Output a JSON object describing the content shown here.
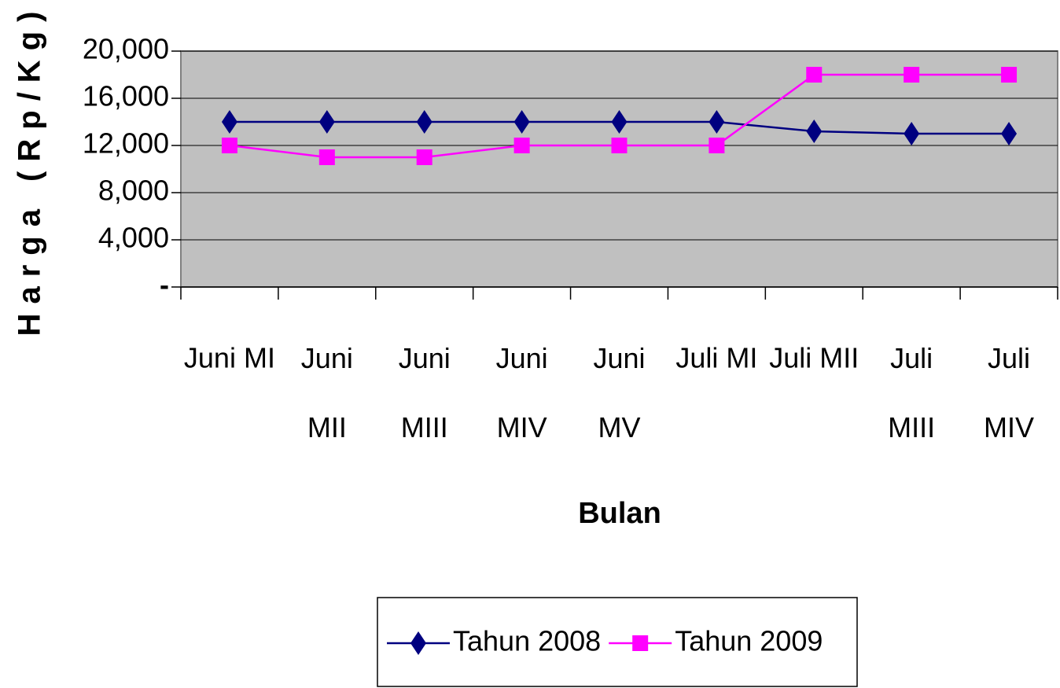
{
  "chart_data": {
    "type": "line",
    "categories": [
      "Juni MI",
      "Juni\nMII",
      "Juni\nMIII",
      "Juni\nMIV",
      "Juni\nMV",
      "Juli MI",
      "Juli MII",
      "Juli\nMIII",
      "Juli\nMIV"
    ],
    "series": [
      {
        "name": "Tahun 2008",
        "color": "#000080",
        "marker": "diamond",
        "values": [
          14000,
          14000,
          14000,
          14000,
          14000,
          14000,
          13200,
          13000,
          13000
        ]
      },
      {
        "name": "Tahun 2009",
        "color": "#ff00ff",
        "marker": "square",
        "values": [
          12000,
          11000,
          11000,
          12000,
          12000,
          12000,
          18000,
          18000,
          18000
        ]
      }
    ],
    "x_label": "Bulan",
    "y_label": "Harga (Rp/Kg)",
    "ylim": [
      0,
      20000
    ],
    "yticks": [
      {
        "value": 0,
        "label": "-"
      },
      {
        "value": 4000,
        "label": "4,000"
      },
      {
        "value": 8000,
        "label": "8,000"
      },
      {
        "value": 12000,
        "label": "12,000"
      },
      {
        "value": 16000,
        "label": "16,000"
      },
      {
        "value": 20000,
        "label": "20,000"
      }
    ],
    "grid": true,
    "legend": "bottom"
  }
}
